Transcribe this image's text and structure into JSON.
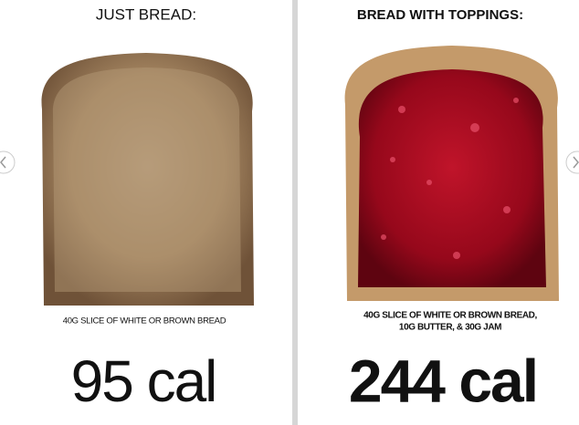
{
  "left": {
    "title": "JUST BREAD:",
    "caption": "40G SLICE OF WHITE OR BROWN BREAD",
    "calories": "95 cal"
  },
  "right": {
    "title": "BREAD WITH TOPPINGS:",
    "caption_lines": [
      "40G SLICE OF WHITE OR BROWN BREAD,",
      "10G BUTTER, & 30G JAM"
    ],
    "calories": "244 cal"
  }
}
